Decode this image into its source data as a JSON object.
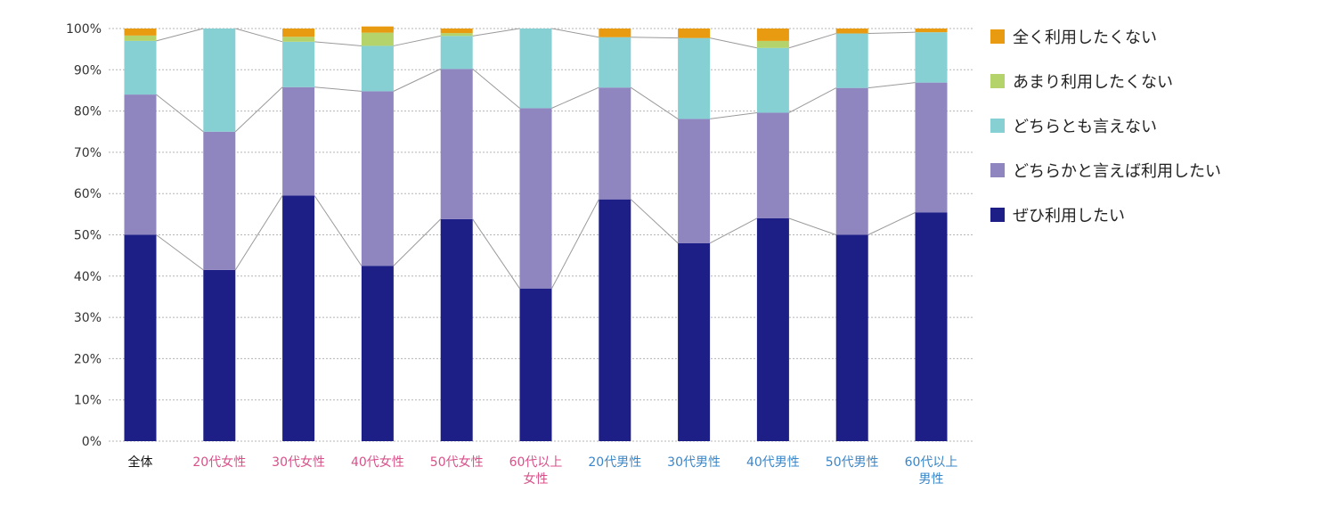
{
  "chart_data": {
    "type": "bar",
    "stacked": true,
    "ylim": [
      0,
      100
    ],
    "y_ticks": [
      "0%",
      "10%",
      "20%",
      "30%",
      "40%",
      "50%",
      "60%",
      "70%",
      "80%",
      "90%",
      "100%"
    ],
    "grid": true,
    "legend_position": "right",
    "categories": [
      {
        "lines": [
          "全体"
        ],
        "group": "all"
      },
      {
        "lines": [
          "20代女性"
        ],
        "group": "female"
      },
      {
        "lines": [
          "30代女性"
        ],
        "group": "female"
      },
      {
        "lines": [
          "40代女性"
        ],
        "group": "female"
      },
      {
        "lines": [
          "50代女性"
        ],
        "group": "female"
      },
      {
        "lines": [
          "60代以上",
          "女性"
        ],
        "group": "female"
      },
      {
        "lines": [
          "20代男性"
        ],
        "group": "male"
      },
      {
        "lines": [
          "30代男性"
        ],
        "group": "male"
      },
      {
        "lines": [
          "40代男性"
        ],
        "group": "male"
      },
      {
        "lines": [
          "50代男性"
        ],
        "group": "male"
      },
      {
        "lines": [
          "60代以上",
          "男性"
        ],
        "group": "male"
      }
    ],
    "group_colors": {
      "all": "#111111",
      "female": "#d8508a",
      "male": "#3a86c8"
    },
    "series": [
      {
        "name": "ぜひ利用したい",
        "color": "#1e1e87",
        "values": [
          50,
          41.5,
          59.5,
          42.5,
          53.8,
          37,
          58.6,
          48,
          54,
          50,
          55.4
        ]
      },
      {
        "name": "どちらかと言えば利用したい",
        "color": "#8f86c0",
        "values": [
          34,
          33.5,
          26.3,
          42.3,
          36.4,
          43.7,
          27.1,
          30.1,
          25.6,
          35.6,
          31.5
        ]
      },
      {
        "name": "どちらとも言えない",
        "color": "#86cfd3",
        "values": [
          13,
          25,
          11,
          11,
          8,
          19.3,
          12.2,
          19.6,
          15.7,
          13.2,
          12.2
        ]
      },
      {
        "name": "あまり利用したくない",
        "color": "#b4d36b",
        "values": [
          1.3,
          0,
          1.2,
          3.2,
          0.7,
          0,
          0,
          0,
          1.7,
          0,
          0
        ]
      },
      {
        "name": "全く利用したくない",
        "color": "#e89a10",
        "values": [
          1.7,
          0,
          2,
          1.5,
          1.1,
          0,
          2.1,
          2.3,
          3,
          1.2,
          0.9
        ]
      }
    ],
    "legend_order": [
      "全く利用したくない",
      "あまり利用したくない",
      "どちらとも言えない",
      "どちらかと言えば利用したい",
      "ぜひ利用したい"
    ]
  }
}
